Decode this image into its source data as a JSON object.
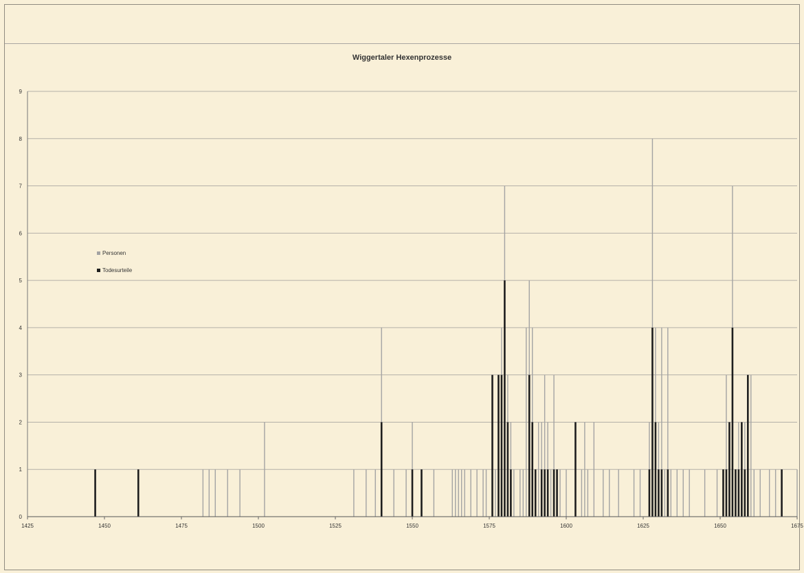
{
  "chart_data": {
    "type": "bar",
    "title": "Wiggertaler Hexenprozesse",
    "xlabel": "",
    "ylabel": "",
    "xlim": [
      1425,
      1675
    ],
    "ylim": [
      0,
      9
    ],
    "x_ticks": [
      1425,
      1450,
      1475,
      1500,
      1525,
      1550,
      1575,
      1600,
      1625,
      1650,
      1675
    ],
    "y_ticks": [
      0,
      1,
      2,
      3,
      4,
      5,
      6,
      7,
      8,
      9
    ],
    "grid": true,
    "legend_position": "left",
    "series": [
      {
        "name": "Personen",
        "color": "#a3a3a3",
        "points": [
          [
            1447,
            1
          ],
          [
            1461,
            1
          ],
          [
            1482,
            1
          ],
          [
            1484,
            1
          ],
          [
            1486,
            1
          ],
          [
            1490,
            1
          ],
          [
            1494,
            1
          ],
          [
            1502,
            2
          ],
          [
            1531,
            1
          ],
          [
            1535,
            1
          ],
          [
            1538,
            1
          ],
          [
            1540,
            4
          ],
          [
            1544,
            1
          ],
          [
            1548,
            1
          ],
          [
            1550,
            2
          ],
          [
            1553,
            1
          ],
          [
            1557,
            1
          ],
          [
            1563,
            1
          ],
          [
            1564,
            1
          ],
          [
            1565,
            1
          ],
          [
            1566,
            1
          ],
          [
            1567,
            1
          ],
          [
            1569,
            1
          ],
          [
            1571,
            1
          ],
          [
            1573,
            1
          ],
          [
            1574,
            1
          ],
          [
            1576,
            3
          ],
          [
            1577,
            1
          ],
          [
            1578,
            3
          ],
          [
            1579,
            4
          ],
          [
            1580,
            7
          ],
          [
            1581,
            3
          ],
          [
            1582,
            2
          ],
          [
            1583,
            1
          ],
          [
            1585,
            1
          ],
          [
            1586,
            1
          ],
          [
            1587,
            4
          ],
          [
            1588,
            5
          ],
          [
            1589,
            4
          ],
          [
            1590,
            1
          ],
          [
            1591,
            2
          ],
          [
            1592,
            2
          ],
          [
            1593,
            3
          ],
          [
            1594,
            2
          ],
          [
            1595,
            1
          ],
          [
            1596,
            3
          ],
          [
            1597,
            1
          ],
          [
            1598,
            1
          ],
          [
            1600,
            1
          ],
          [
            1603,
            2
          ],
          [
            1605,
            1
          ],
          [
            1606,
            2
          ],
          [
            1607,
            1
          ],
          [
            1609,
            2
          ],
          [
            1612,
            1
          ],
          [
            1614,
            1
          ],
          [
            1617,
            1
          ],
          [
            1622,
            1
          ],
          [
            1624,
            1
          ],
          [
            1627,
            2
          ],
          [
            1628,
            8
          ],
          [
            1629,
            4
          ],
          [
            1630,
            2
          ],
          [
            1631,
            4
          ],
          [
            1632,
            1
          ],
          [
            1633,
            4
          ],
          [
            1634,
            1
          ],
          [
            1636,
            1
          ],
          [
            1638,
            1
          ],
          [
            1640,
            1
          ],
          [
            1645,
            1
          ],
          [
            1649,
            1
          ],
          [
            1651,
            1
          ],
          [
            1652,
            3
          ],
          [
            1653,
            2
          ],
          [
            1654,
            7
          ],
          [
            1655,
            1
          ],
          [
            1656,
            2
          ],
          [
            1657,
            2
          ],
          [
            1658,
            2
          ],
          [
            1659,
            1
          ],
          [
            1660,
            3
          ],
          [
            1661,
            1
          ],
          [
            1663,
            1
          ],
          [
            1666,
            1
          ],
          [
            1668,
            1
          ],
          [
            1670,
            1
          ],
          [
            1675,
            1
          ]
        ]
      },
      {
        "name": "Todesurteile",
        "color": "#1e1e1e",
        "points": [
          [
            1447,
            1
          ],
          [
            1461,
            1
          ],
          [
            1540,
            2
          ],
          [
            1550,
            1
          ],
          [
            1553,
            1
          ],
          [
            1576,
            3
          ],
          [
            1578,
            3
          ],
          [
            1579,
            3
          ],
          [
            1580,
            5
          ],
          [
            1581,
            2
          ],
          [
            1582,
            1
          ],
          [
            1588,
            3
          ],
          [
            1589,
            2
          ],
          [
            1590,
            1
          ],
          [
            1592,
            1
          ],
          [
            1593,
            1
          ],
          [
            1594,
            1
          ],
          [
            1596,
            1
          ],
          [
            1597,
            1
          ],
          [
            1603,
            2
          ],
          [
            1627,
            1
          ],
          [
            1628,
            4
          ],
          [
            1629,
            2
          ],
          [
            1630,
            1
          ],
          [
            1631,
            1
          ],
          [
            1633,
            1
          ],
          [
            1651,
            1
          ],
          [
            1652,
            1
          ],
          [
            1653,
            2
          ],
          [
            1654,
            4
          ],
          [
            1655,
            1
          ],
          [
            1656,
            1
          ],
          [
            1657,
            2
          ],
          [
            1658,
            1
          ],
          [
            1659,
            3
          ],
          [
            1670,
            1
          ]
        ]
      }
    ]
  }
}
